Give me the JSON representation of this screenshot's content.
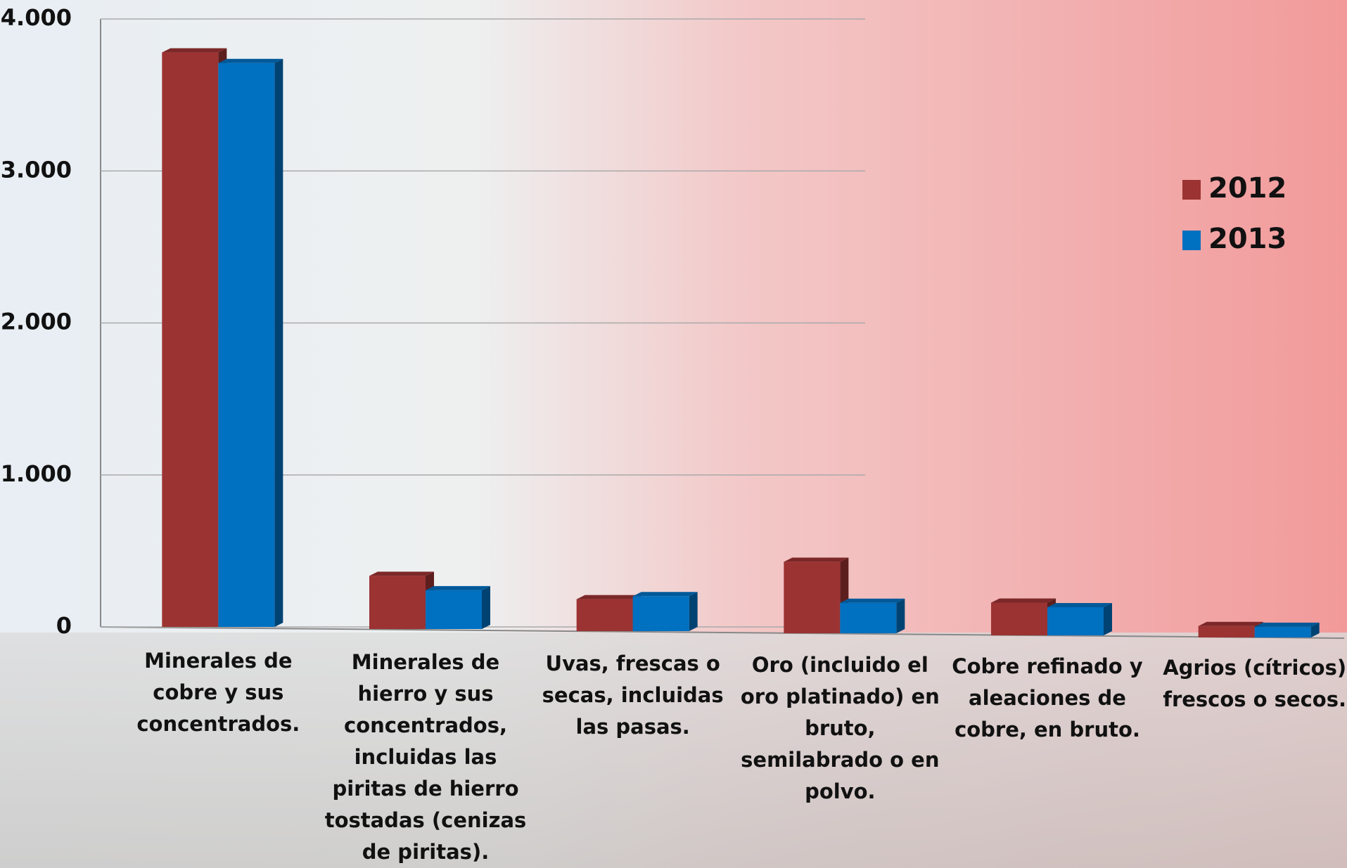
{
  "chart_data": {
    "type": "bar",
    "categories": [
      "Minerales de cobre y sus concentrados.",
      "Minerales de hierro y sus concentrados, incluidas las piritas de hierro tostadas (cenizas de piritas).",
      "Uvas, frescas o secas, incluidas las pasas.",
      "Oro (incluido el oro platinado) en bruto, semilabrado o en polvo.",
      "Cobre refinado y aleaciones de cobre, en bruto.",
      "Agrios (cítricos) frescos o secos."
    ],
    "series": [
      {
        "name": "2012",
        "color": "#9b3332",
        "values": [
          3780,
          350,
          210,
          470,
          215,
          75
        ]
      },
      {
        "name": "2013",
        "color": "#0070c0",
        "values": [
          3710,
          255,
          230,
          200,
          185,
          70
        ]
      }
    ],
    "ylim": [
      0,
      4000
    ],
    "yticks": [
      0,
      {
        "value": 1000,
        "label": "1.000"
      },
      {
        "value": 2000,
        "label": "2.000"
      },
      {
        "value": 3000,
        "label": "3.000"
      },
      {
        "value": 4000,
        "label": "4.000"
      }
    ],
    "grid": true,
    "legend": "right"
  }
}
